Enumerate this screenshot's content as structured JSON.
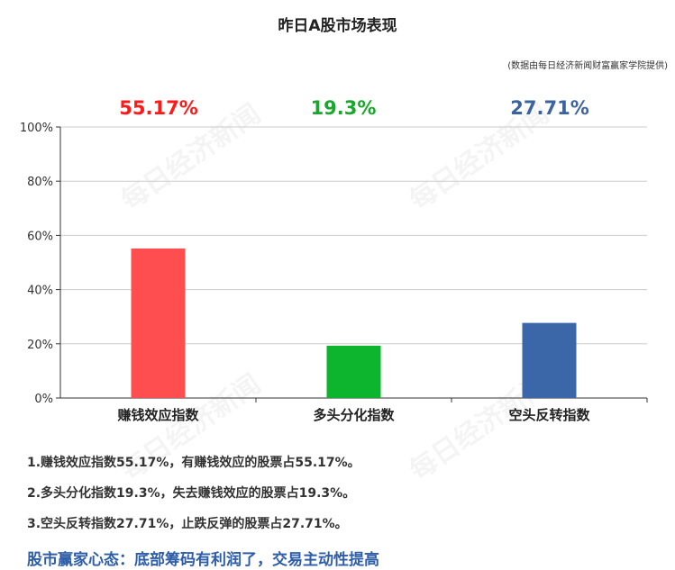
{
  "chart_data": {
    "type": "bar",
    "title": "昨日A股市场表现",
    "source_note": "(数据由每日经济新闻财富赢家学院提供)",
    "categories": [
      "赚钱效应指数",
      "多头分化指数",
      "空头反转指数"
    ],
    "values": [
      55.17,
      19.3,
      27.71
    ],
    "value_labels": [
      "55.17%",
      "19.3%",
      "27.71%"
    ],
    "colors": [
      "#ff4e50",
      "#0cb52d",
      "#3b67a8"
    ],
    "label_colors": [
      "#ff1a1a",
      "#18a82b",
      "#3b63a0"
    ],
    "ylim": [
      0,
      100
    ],
    "yticks": [
      0,
      20,
      40,
      60,
      80,
      100
    ],
    "ytick_labels": [
      "0%",
      "20%",
      "40%",
      "60%",
      "80%",
      "100%"
    ],
    "grid": true,
    "legend": "none",
    "xlabel": "",
    "ylabel": ""
  },
  "notes": [
    "1.赚钱效应指数55.17%，有赚钱效应的股票占55.17%。",
    "2.多头分化指数19.3%，失去赚钱效应的股票占19.3%。",
    "3.空头反转指数27.71%，止跌反弹的股票占27.71%。"
  ],
  "slogan": "股市赢家心态：底部筹码有利润了，交易主动性提高",
  "watermark": "每日经济新闻"
}
